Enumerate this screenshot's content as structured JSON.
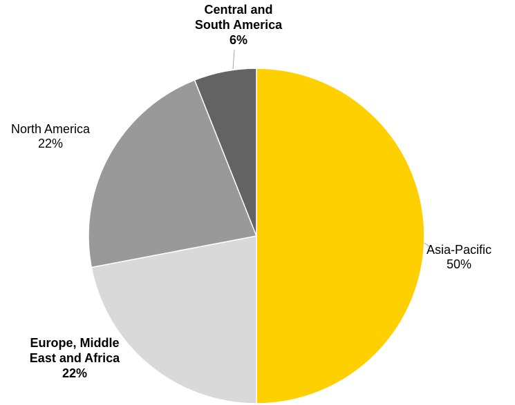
{
  "chart_data": {
    "type": "pie",
    "title": "",
    "slices": [
      {
        "label_lines": [
          "Asia-Pacific",
          "50%"
        ],
        "category": "Asia-Pacific",
        "value": 50,
        "color": "#ffd000",
        "bold": false
      },
      {
        "label_lines": [
          "Europe, Middle",
          "East and Africa",
          "22%"
        ],
        "category": "Europe, Middle East and Africa",
        "value": 22,
        "color": "#d9d9d9",
        "bold": true
      },
      {
        "label_lines": [
          "North America",
          "22%"
        ],
        "category": "North America",
        "value": 22,
        "color": "#999999",
        "bold": false
      },
      {
        "label_lines": [
          "Central and",
          "South America",
          "6%"
        ],
        "category": "Central and South America",
        "value": 6,
        "color": "#636363",
        "bold": true
      }
    ],
    "start_angle": "12 o'clock",
    "direction": "clockwise",
    "legend": "none",
    "data_labels": "outside"
  }
}
